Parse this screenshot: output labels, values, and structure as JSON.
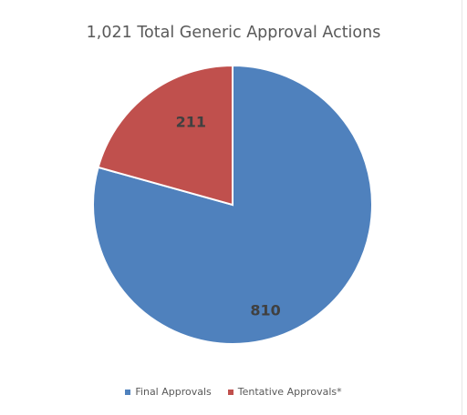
{
  "chart_data": {
    "type": "pie",
    "title": "1,021 Total Generic Approval Actions",
    "categories": [
      "Final Approvals",
      "Tentative Approvals*"
    ],
    "values": [
      810,
      211
    ],
    "data_labels": [
      "810",
      "211"
    ],
    "colors": [
      "#4f81bd",
      "#c0504d"
    ],
    "legend_position": "bottom"
  }
}
